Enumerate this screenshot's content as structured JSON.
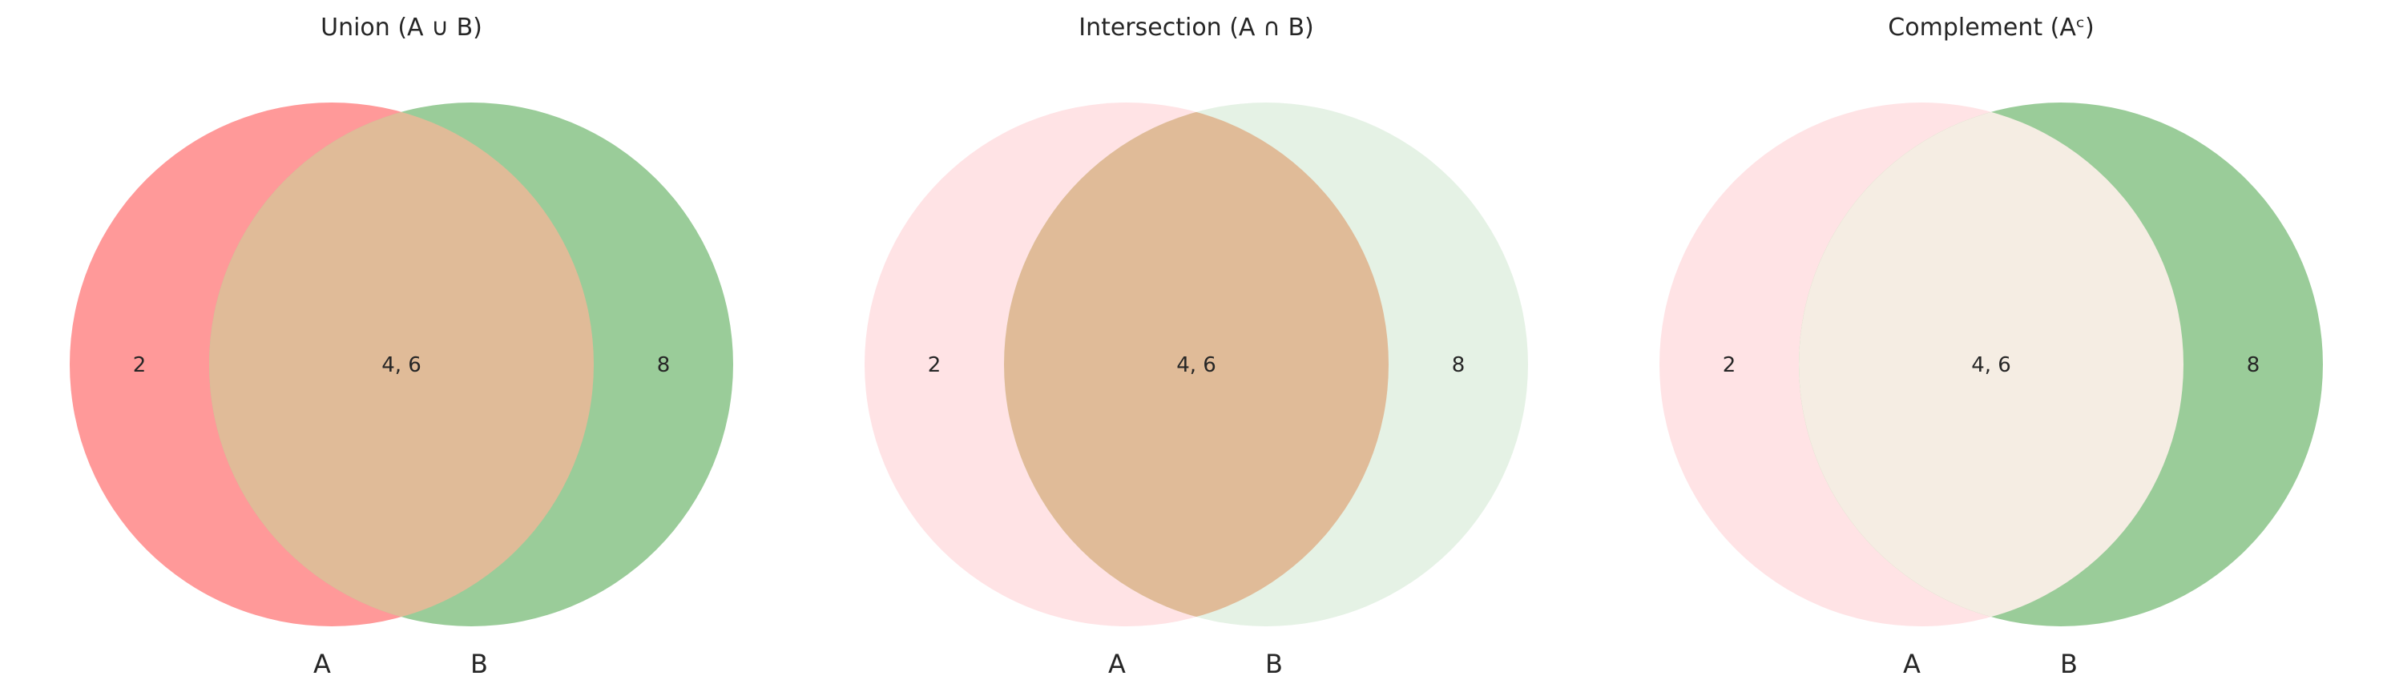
{
  "diagrams": [
    {
      "title": "Union (A ∪ B)",
      "labels": {
        "a_only": "2",
        "both": "4, 6",
        "b_only": "8"
      },
      "set_labels": {
        "a": "A",
        "b": "B"
      },
      "colors": {
        "a_only": "#ff9999",
        "both": "#e0bb98",
        "b_only": "#9acc99"
      }
    },
    {
      "title": "Intersection (A ∩ B)",
      "labels": {
        "a_only": "2",
        "both": "4, 6",
        "b_only": "8"
      },
      "set_labels": {
        "a": "A",
        "b": "B"
      },
      "colors": {
        "a_only": "#ffe3e5",
        "both": "#e0bb98",
        "b_only": "#e5f2e5"
      }
    },
    {
      "title": "Complement (Aᶜ)",
      "labels": {
        "a_only": "2",
        "both": "4, 6",
        "b_only": "8"
      },
      "set_labels": {
        "a": "A",
        "b": "B"
      },
      "colors": {
        "a_only": "#ffe3e5",
        "both": "#f5ede3",
        "b_only": "#9acc99"
      }
    }
  ]
}
